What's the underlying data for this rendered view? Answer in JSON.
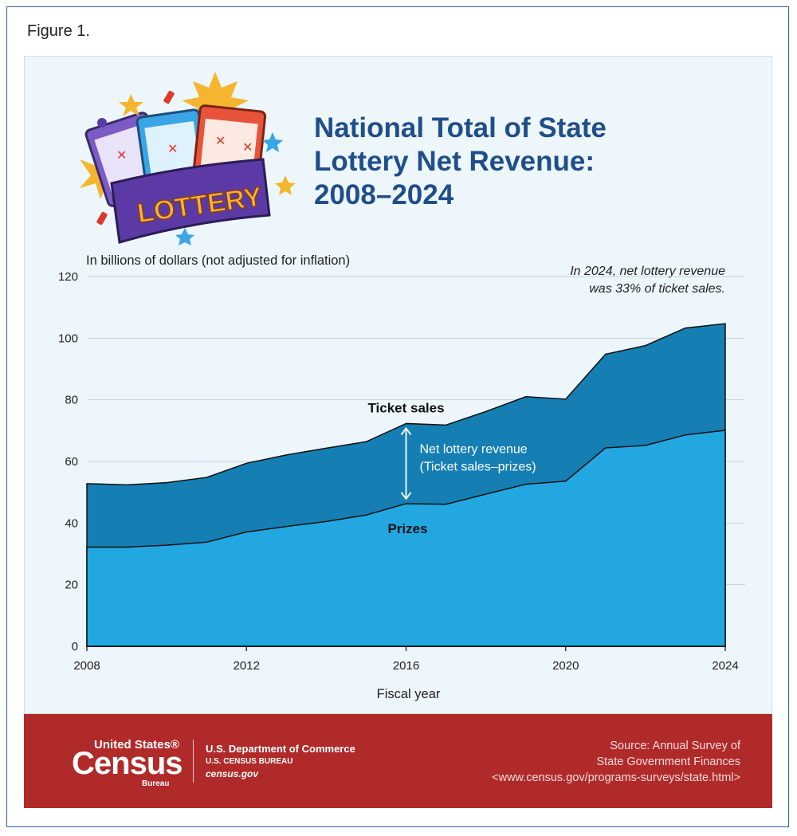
{
  "figure_label": "Figure 1.",
  "title_lines": [
    "National Total of State",
    "Lottery Net Revenue:",
    "2008–2024"
  ],
  "illustration": {
    "name": "lottery-tickets-illustration",
    "banner_text": "LOTTERY"
  },
  "colors": {
    "ticket_sales_fill": "#157fb4",
    "prizes_fill": "#22a7e0",
    "title": "#1f4e8a",
    "footer": "#b12a2a",
    "panel": "#ecf6fb"
  },
  "chart_data": {
    "type": "area",
    "ylabel": "In billions of dollars (not adjusted for inflation)",
    "xlabel": "Fiscal year",
    "ylim": [
      0,
      120
    ],
    "yticks": [
      0,
      20,
      40,
      60,
      80,
      100,
      120
    ],
    "xticks": [
      2008,
      2012,
      2016,
      2020,
      2024
    ],
    "x": [
      2008,
      2009,
      2010,
      2011,
      2012,
      2013,
      2014,
      2015,
      2016,
      2017,
      2018,
      2019,
      2020,
      2021,
      2022,
      2023,
      2024
    ],
    "series": [
      {
        "name": "Ticket sales",
        "values": [
          52.8,
          52.4,
          53.1,
          54.8,
          59.4,
          62.1,
          64.3,
          66.4,
          72.3,
          71.8,
          76.2,
          81.0,
          80.2,
          94.8,
          97.6,
          103.3,
          104.7
        ]
      },
      {
        "name": "Prizes",
        "values": [
          32.2,
          32.2,
          32.8,
          33.8,
          37.1,
          38.9,
          40.5,
          42.6,
          46.3,
          46.1,
          49.4,
          52.6,
          53.6,
          64.4,
          65.2,
          68.6,
          70.1
        ]
      }
    ],
    "annotations": {
      "ticket_sales_label": "Ticket sales",
      "prizes_label": "Prizes",
      "net_label_line1": "Net lottery revenue",
      "net_label_line2": "(Ticket sales–prizes)",
      "net_arrow_year": 2016,
      "note_line1": "In 2024, net lottery revenue",
      "note_line2": "was 33% of ticket sales."
    },
    "grid": "horizontal"
  },
  "footer": {
    "logo_top": "United States®",
    "logo_main": "Census",
    "logo_sub": "Bureau",
    "dept_line1": "U.S. Department of Commerce",
    "dept_line2": "U.S. CENSUS BUREAU",
    "dept_line3": "census.gov",
    "source_line1": "Source: Annual Survey of",
    "source_line2": "State Government Finances",
    "source_line3": "<www.census.gov/programs-surveys/state.html>"
  }
}
